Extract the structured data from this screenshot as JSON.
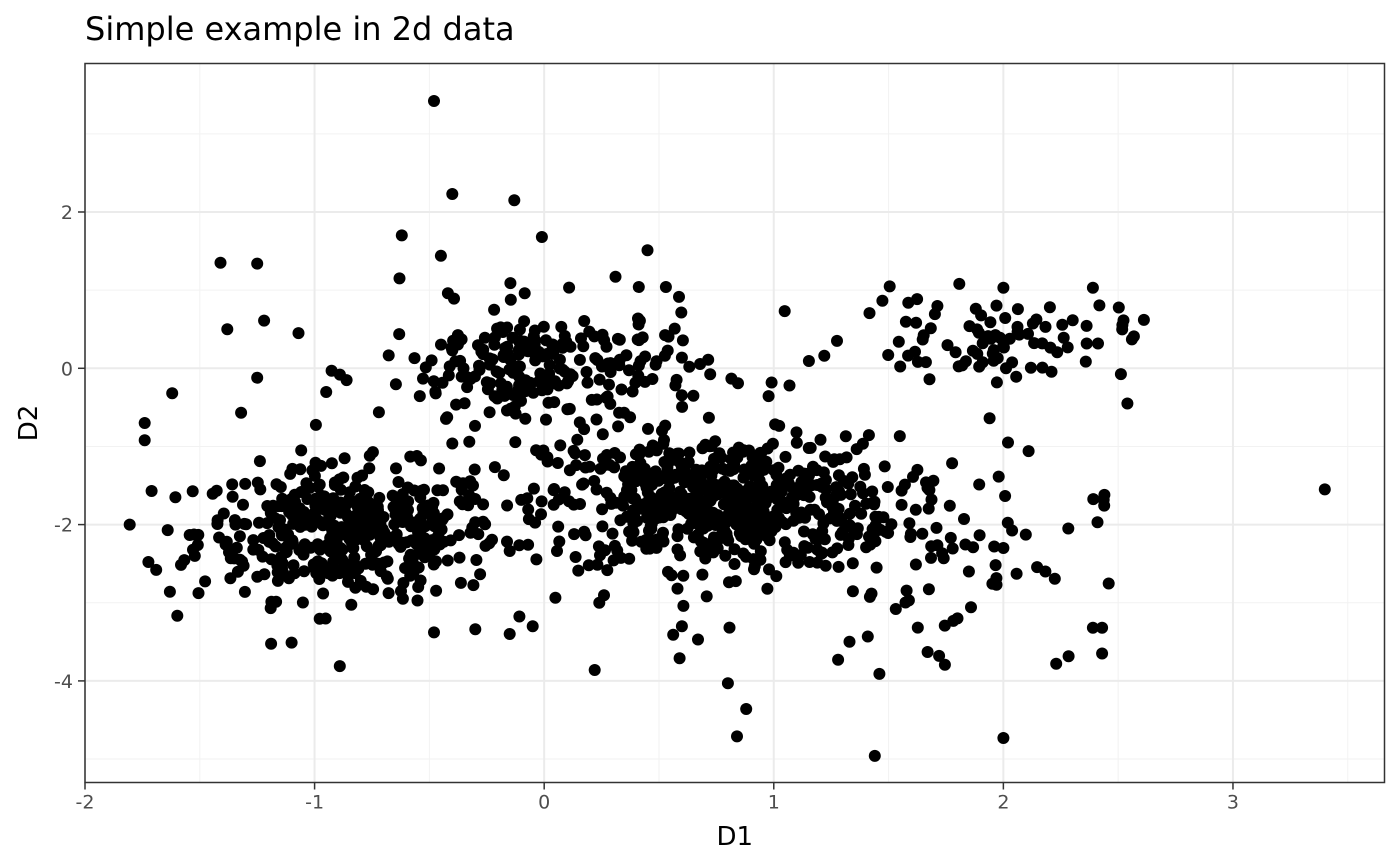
{
  "chart_data": {
    "type": "scatter",
    "title": "Simple example in 2d data",
    "xlabel": "D1",
    "ylabel": "D2",
    "xlim": [
      -2,
      3.66
    ],
    "ylim": [
      -5.3,
      3.9
    ],
    "x_ticks": [
      -2,
      -1,
      0,
      1,
      2,
      3
    ],
    "x_tick_labels": [
      "-2",
      "-1",
      "0",
      "1",
      "2",
      "3"
    ],
    "y_ticks": [
      -4,
      -2,
      0,
      2
    ],
    "y_tick_labels": [
      "-4",
      "-2",
      "0",
      "2"
    ],
    "grid": true,
    "legend": "none",
    "point_color": "#000000",
    "clusters": [
      {
        "cx": -0.85,
        "cy": -2.1,
        "sx": 0.33,
        "sy": 0.42,
        "n": 450
      },
      {
        "cx": 0.78,
        "cy": -1.72,
        "sx": 0.38,
        "sy": 0.42,
        "n": 650
      },
      {
        "cx": 0.0,
        "cy": -0.05,
        "sx": 0.36,
        "sy": 0.42,
        "n": 250
      },
      {
        "cx": 1.95,
        "cy": 0.4,
        "sx": 0.3,
        "sy": 0.26,
        "n": 90
      },
      {
        "cx": 1.7,
        "cy": -2.4,
        "sx": 0.35,
        "sy": 0.6,
        "n": 60
      }
    ],
    "points": [
      [
        -0.48,
        3.42
      ],
      [
        -0.4,
        2.23
      ],
      [
        -0.13,
        2.15
      ],
      [
        -0.62,
        1.7
      ],
      [
        -0.01,
        1.68
      ],
      [
        0.45,
        1.51
      ],
      [
        -0.45,
        1.44
      ],
      [
        -1.41,
        1.35
      ],
      [
        -1.25,
        1.34
      ],
      [
        -0.63,
        1.15
      ],
      [
        0.53,
        1.04
      ],
      [
        2.0,
        1.03
      ],
      [
        2.39,
        1.03
      ],
      [
        -1.74,
        -0.7
      ],
      [
        -1.74,
        -0.92
      ],
      [
        -1.62,
        -0.32
      ],
      [
        -1.38,
        0.5
      ],
      [
        -1.22,
        0.61
      ],
      [
        -1.07,
        0.45
      ],
      [
        -1.25,
        -0.12
      ],
      [
        -1.32,
        -0.57
      ],
      [
        2.54,
        -0.45
      ],
      [
        2.56,
        0.37
      ],
      [
        3.4,
        -1.55
      ],
      [
        2.44,
        -1.62
      ],
      [
        2.41,
        -1.97
      ],
      [
        2.39,
        -3.32
      ],
      [
        2.43,
        -3.32
      ],
      [
        2.43,
        -3.65
      ],
      [
        2.23,
        -3.78
      ],
      [
        2.0,
        -4.73
      ],
      [
        1.44,
        -4.96
      ],
      [
        0.84,
        -4.71
      ],
      [
        0.8,
        -4.03
      ],
      [
        0.88,
        -4.36
      ],
      [
        1.46,
        -3.91
      ],
      [
        0.22,
        -3.86
      ],
      [
        -0.89,
        -3.81
      ],
      [
        -1.1,
        -3.51
      ],
      [
        -1.63,
        -2.86
      ],
      [
        -1.69,
        -2.58
      ],
      [
        -1.64,
        -2.07
      ],
      [
        -1.71,
        -1.57
      ],
      [
        1.97,
        -2.77
      ],
      [
        1.8,
        -3.2
      ],
      [
        2.02,
        -0.95
      ],
      [
        2.11,
        -1.06
      ],
      [
        1.94,
        -0.64
      ],
      [
        2.0,
        -2.3
      ],
      [
        1.96,
        -2.28
      ],
      [
        1.85,
        -2.6
      ],
      [
        1.72,
        -3.68
      ],
      [
        1.67,
        -3.63
      ],
      [
        0.24,
        -3.0
      ],
      [
        -0.05,
        -3.3
      ],
      [
        -0.3,
        -3.34
      ],
      [
        -0.15,
        -3.4
      ],
      [
        -0.48,
        -3.38
      ],
      [
        0.6,
        -3.3
      ],
      [
        1.33,
        -3.5
      ],
      [
        1.28,
        -3.73
      ],
      [
        0.67,
        -3.47
      ],
      [
        0.59,
        -3.71
      ]
    ]
  }
}
